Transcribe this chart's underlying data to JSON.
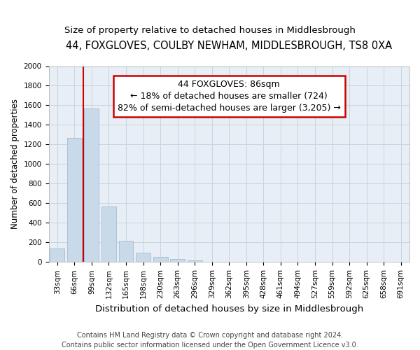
{
  "title": "44, FOXGLOVES, COULBY NEWHAM, MIDDLESBROUGH, TS8 0XA",
  "subtitle": "Size of property relative to detached houses in Middlesbrough",
  "xlabel": "Distribution of detached houses by size in Middlesbrough",
  "ylabel": "Number of detached properties",
  "categories": [
    "33sqm",
    "66sqm",
    "99sqm",
    "132sqm",
    "165sqm",
    "198sqm",
    "230sqm",
    "263sqm",
    "296sqm",
    "329sqm",
    "362sqm",
    "395sqm",
    "428sqm",
    "461sqm",
    "494sqm",
    "527sqm",
    "559sqm",
    "592sqm",
    "625sqm",
    "658sqm",
    "691sqm"
  ],
  "values": [
    140,
    1270,
    1570,
    570,
    215,
    95,
    55,
    30,
    15,
    5,
    2,
    2,
    0,
    0,
    0,
    0,
    0,
    0,
    0,
    0,
    0
  ],
  "bar_color": "#c8d9ea",
  "bar_edgecolor": "#9ab5cc",
  "vline_x_index": 2.0,
  "vline_color": "#cc0000",
  "annotation_line1": "44 FOXGLOVES: 86sqm",
  "annotation_line2": "← 18% of detached houses are smaller (724)",
  "annotation_line3": "82% of semi-detached houses are larger (3,205) →",
  "annotation_box_edgecolor": "#cc0000",
  "annotation_box_facecolor": "#ffffff",
  "footer_text": "Contains HM Land Registry data © Crown copyright and database right 2024.\nContains public sector information licensed under the Open Government Licence v3.0.",
  "ylim": [
    0,
    2000
  ],
  "yticks": [
    0,
    200,
    400,
    600,
    800,
    1000,
    1200,
    1400,
    1600,
    1800,
    2000
  ],
  "title_fontsize": 10.5,
  "subtitle_fontsize": 9.5,
  "xlabel_fontsize": 9.5,
  "ylabel_fontsize": 8.5,
  "tick_fontsize": 7.5,
  "annotation_fontsize": 9,
  "footer_fontsize": 7,
  "background_color": "#ffffff",
  "plot_bg_color": "#e8eef5",
  "grid_color": "#c8d4de"
}
